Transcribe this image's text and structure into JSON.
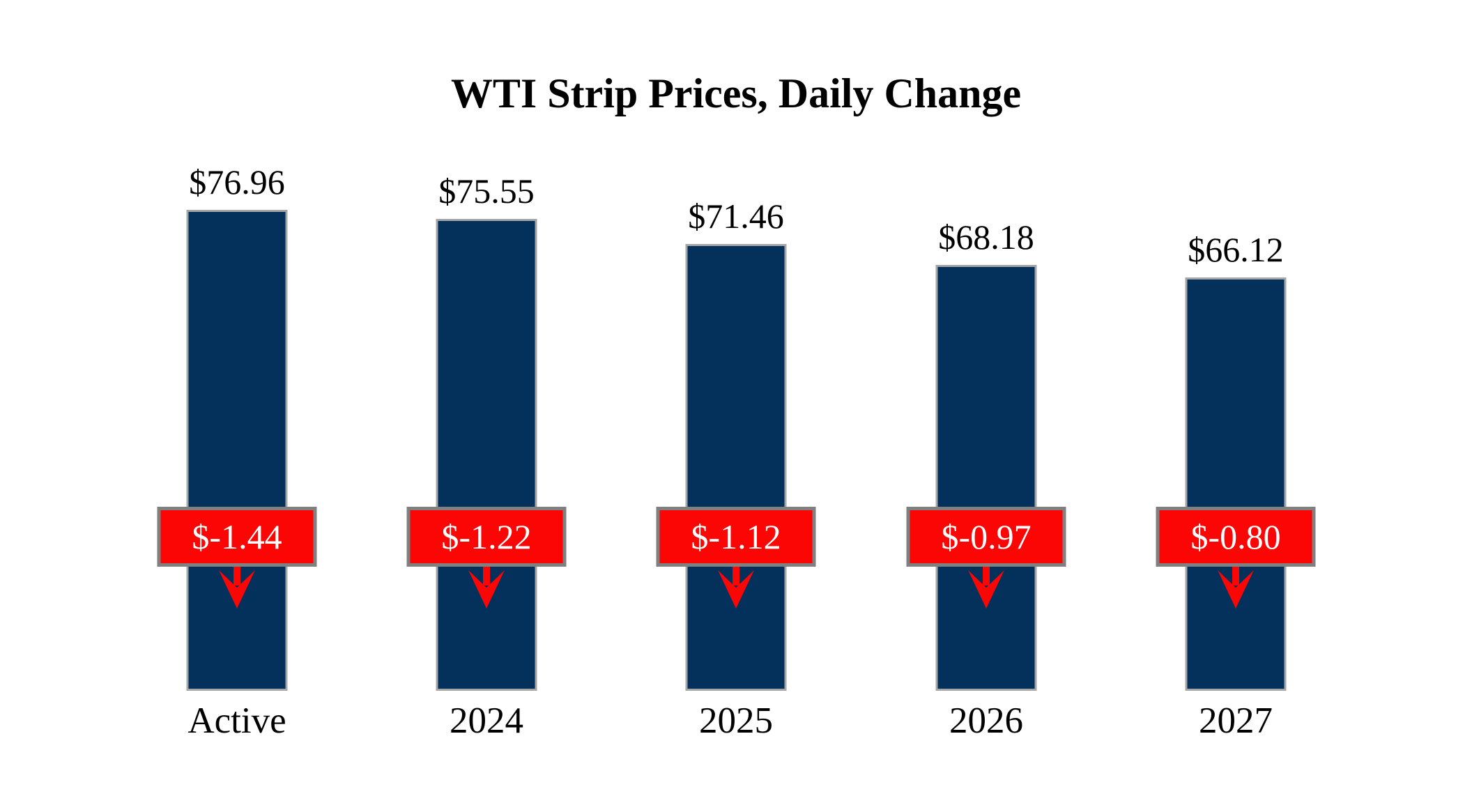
{
  "chart_data": {
    "type": "bar",
    "title": "WTI Strip Prices, Daily Change",
    "categories": [
      "Active",
      "2024",
      "2025",
      "2026",
      "2027"
    ],
    "series": [
      {
        "name": "WTI strip price ($)",
        "values": [
          76.96,
          75.55,
          71.46,
          68.18,
          66.12
        ]
      },
      {
        "name": "Daily change ($)",
        "values": [
          -1.44,
          -1.22,
          -1.12,
          -0.97,
          -0.8
        ]
      }
    ],
    "columns": [
      {
        "category": "Active",
        "price": 76.96,
        "price_label": "$76.96",
        "change": -1.44,
        "change_label": "$-1.44"
      },
      {
        "category": "2024",
        "price": 75.55,
        "price_label": "$75.55",
        "change": -1.22,
        "change_label": "$-1.22"
      },
      {
        "category": "2025",
        "price": 71.46,
        "price_label": "$71.46",
        "change": -1.12,
        "change_label": "$-1.12"
      },
      {
        "category": "2026",
        "price": 68.18,
        "price_label": "$68.18",
        "change": -0.97,
        "change_label": "$-0.97"
      },
      {
        "category": "2027",
        "price": 66.12,
        "price_label": "$66.12",
        "change": -0.8,
        "change_label": "$-0.80"
      }
    ],
    "ylim": [
      0,
      86
    ],
    "grid": false,
    "legend": "none",
    "axes_visible": false,
    "colors": {
      "bar_fill": "#04305C",
      "bar_border": "#A6A6A6",
      "change_box_fill": "#FB0505",
      "change_box_border": "#808080",
      "change_text": "#FFFFFF",
      "label_text": "#000000",
      "arrow": "#FB0505",
      "background": "#FFFFFF"
    }
  }
}
